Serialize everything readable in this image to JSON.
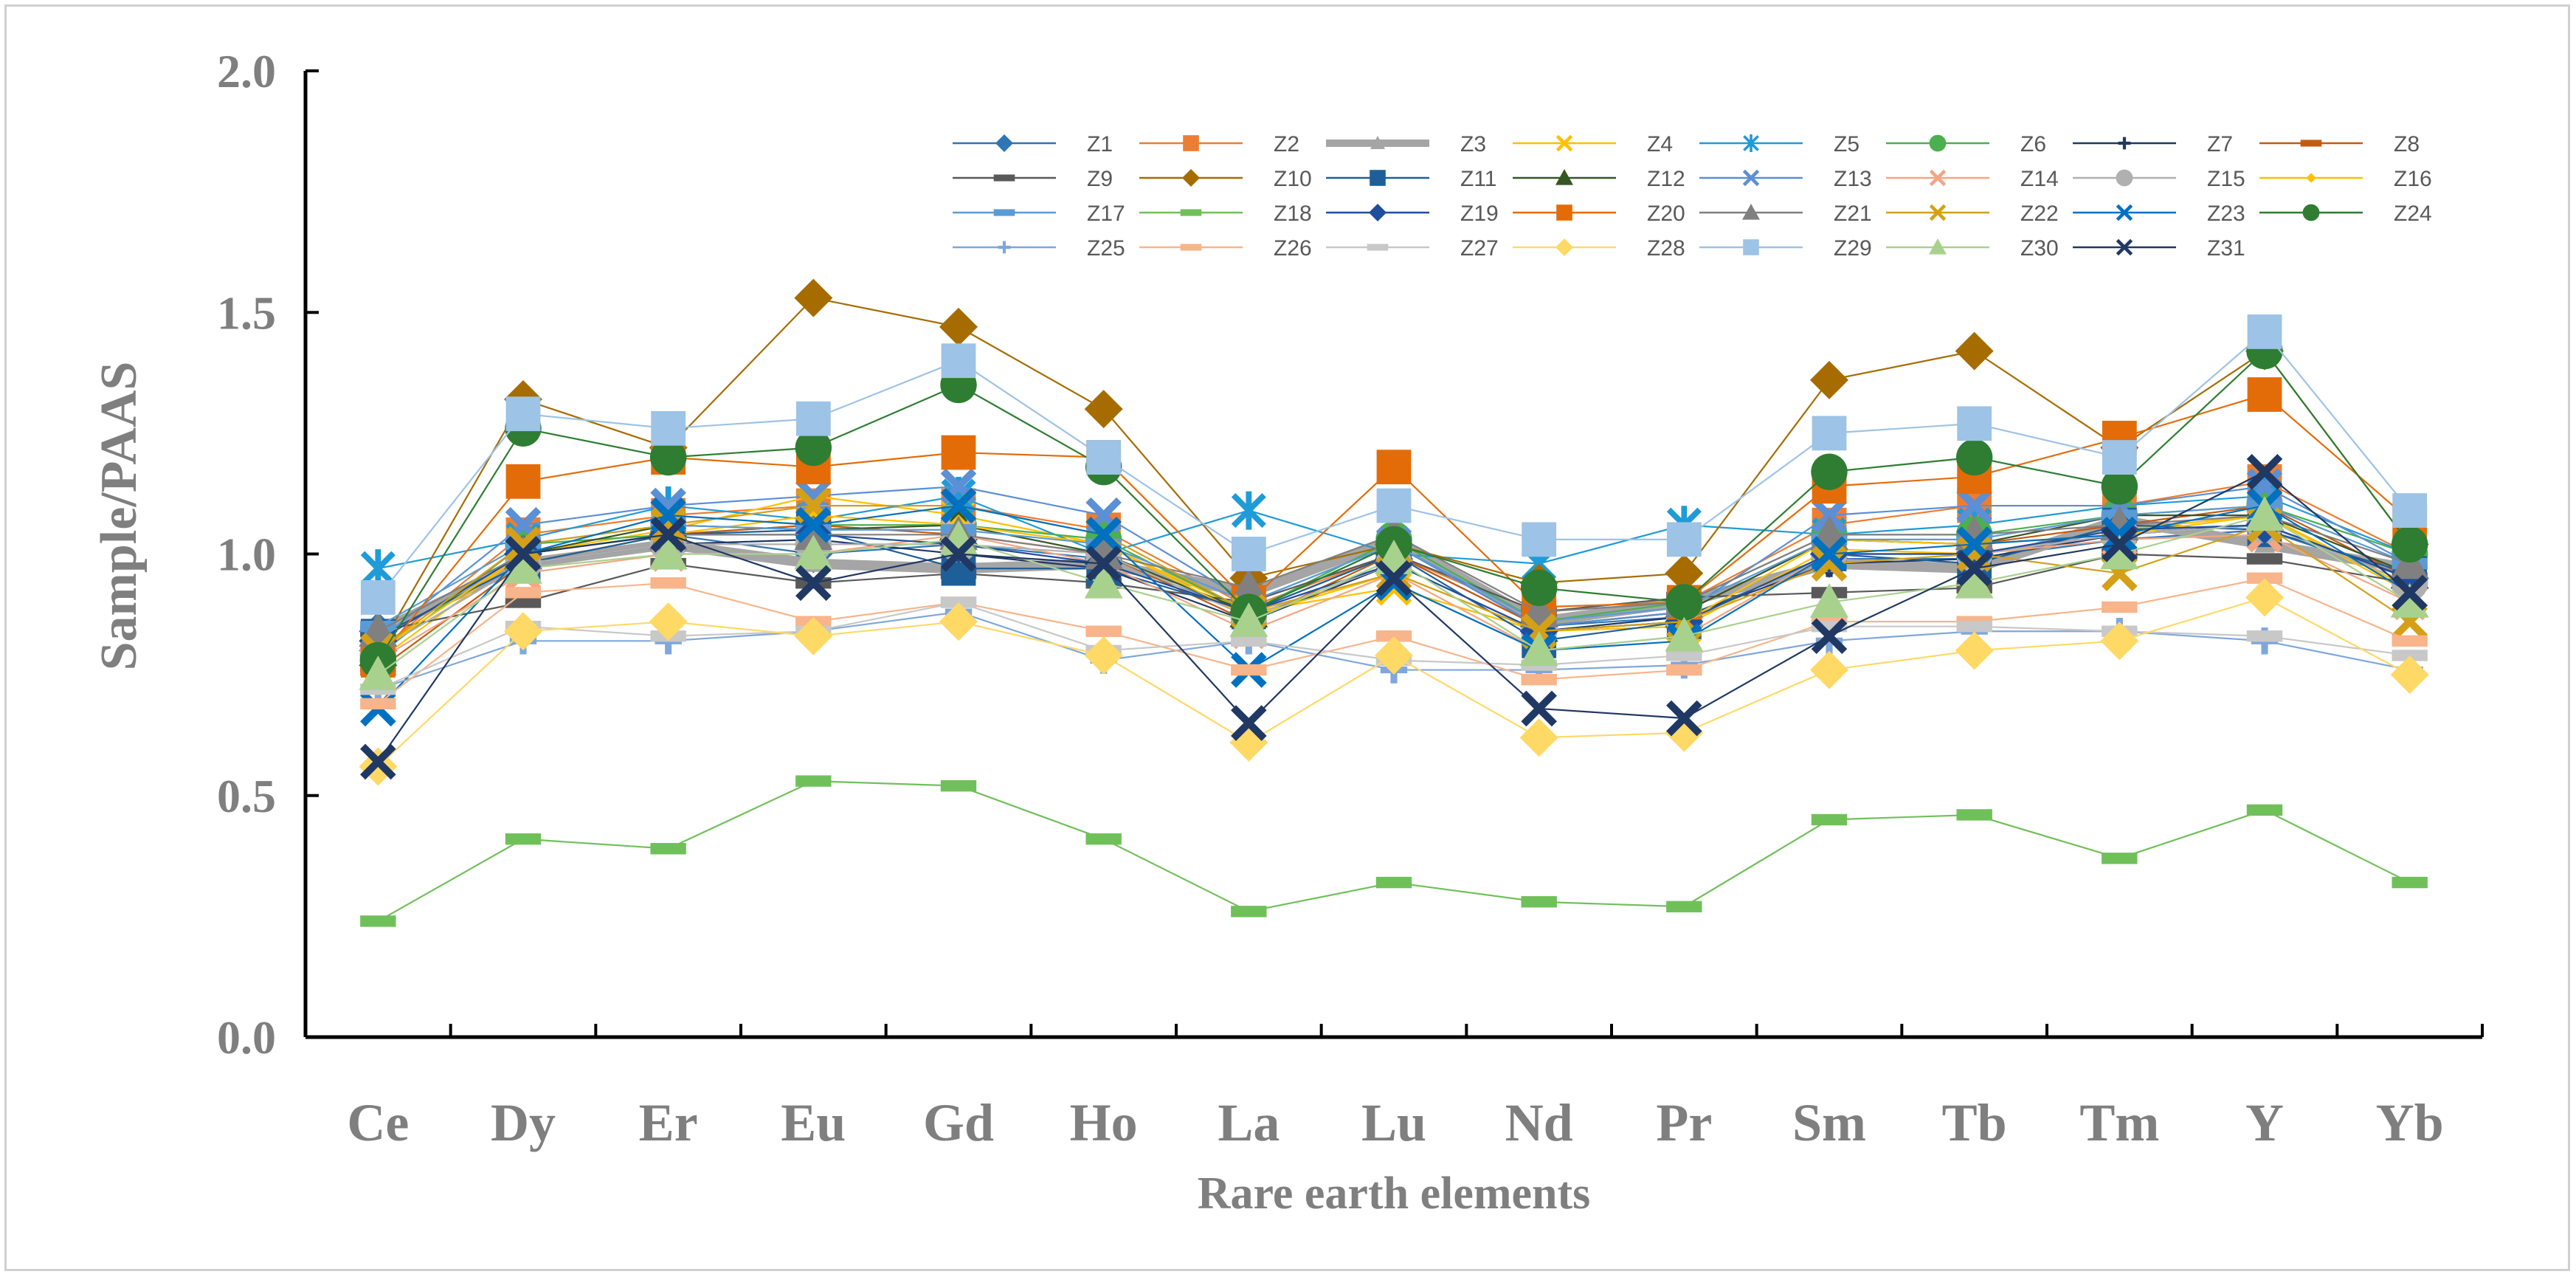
{
  "chart_data": {
    "type": "line",
    "title": "",
    "xlabel": "Rare earth elements",
    "ylabel": "Sample/PAAS",
    "ylim": [
      0,
      2
    ],
    "yticks": [
      "0.0",
      "0.5",
      "1.0",
      "1.5",
      "2.0"
    ],
    "categories": [
      "Ce",
      "Dy",
      "Er",
      "Eu",
      "Gd",
      "Ho",
      "La",
      "Lu",
      "Nd",
      "Pr",
      "Sm",
      "Tb",
      "Tm",
      "Y",
      "Yb"
    ],
    "legend_position": "top-right inside",
    "series": [
      {
        "name": "Z1",
        "color": "#2e75b6",
        "marker": "diamond",
        "values": [
          0.84,
          1.0,
          1.04,
          1.0,
          1.02,
          0.99,
          0.88,
          1.0,
          0.85,
          0.87,
          0.99,
          0.99,
          1.03,
          1.05,
          0.95
        ]
      },
      {
        "name": "Z2",
        "color": "#ed7d31",
        "marker": "square",
        "values": [
          0.8,
          1.04,
          1.08,
          1.1,
          1.1,
          1.05,
          0.89,
          1.0,
          0.87,
          0.9,
          1.06,
          1.1,
          1.1,
          1.15,
          1.0
        ]
      },
      {
        "name": "Z3",
        "color": "#a5a5a5",
        "marker": "triangle",
        "bold": true,
        "values": [
          0.84,
          0.98,
          1.02,
          0.98,
          0.97,
          0.98,
          0.92,
          1.03,
          0.86,
          0.9,
          0.98,
          0.97,
          1.07,
          1.02,
          0.97
        ]
      },
      {
        "name": "Z4",
        "color": "#ffc000",
        "marker": "x",
        "values": [
          0.78,
          1.0,
          1.05,
          1.12,
          1.08,
          1.02,
          0.88,
          0.93,
          0.84,
          0.85,
          1.01,
          1.0,
          1.05,
          1.08,
          0.92
        ]
      },
      {
        "name": "Z5",
        "color": "#1f9bd7",
        "marker": "star",
        "values": [
          0.97,
          1.03,
          1.1,
          1.07,
          1.12,
          1.0,
          1.09,
          1.0,
          0.98,
          1.06,
          1.04,
          1.06,
          1.1,
          1.12,
          1.0
        ]
      },
      {
        "name": "Z6",
        "color": "#4caf50",
        "marker": "circle",
        "values": [
          0.79,
          1.02,
          1.04,
          1.06,
          1.06,
          1.03,
          0.88,
          1.03,
          0.86,
          0.9,
          1.04,
          1.04,
          1.08,
          1.1,
          1.0
        ]
      },
      {
        "name": "Z7",
        "color": "#1f3864",
        "marker": "plus",
        "values": [
          0.8,
          0.98,
          1.02,
          1.03,
          1.0,
          0.97,
          0.86,
          0.98,
          0.84,
          0.87,
          0.98,
          0.99,
          1.04,
          1.06,
          0.95
        ]
      },
      {
        "name": "Z8",
        "color": "#c55a11",
        "marker": "dash",
        "values": [
          0.76,
          0.98,
          1.04,
          1.06,
          1.04,
          1.0,
          0.86,
          1.0,
          0.85,
          0.88,
          1.03,
          1.02,
          1.06,
          1.1,
          0.95
        ]
      },
      {
        "name": "Z9",
        "color": "#595959",
        "marker": "dash",
        "values": [
          0.84,
          0.9,
          0.98,
          0.94,
          0.96,
          0.94,
          0.9,
          1.0,
          0.88,
          0.91,
          0.92,
          0.93,
          1.0,
          0.99,
          0.94
        ]
      },
      {
        "name": "Z10",
        "color": "#a66c00",
        "marker": "diamond",
        "values": [
          0.8,
          1.32,
          1.22,
          1.53,
          1.47,
          1.3,
          0.95,
          1.02,
          0.94,
          0.96,
          1.36,
          1.42,
          1.22,
          1.42,
          1.02
        ]
      },
      {
        "name": "Z11",
        "color": "#1f5f99",
        "marker": "square",
        "values": [
          0.83,
          0.98,
          1.04,
          1.05,
          0.97,
          0.97,
          0.88,
          1.0,
          0.82,
          0.86,
          1.0,
          0.98,
          1.06,
          1.05,
          0.96
        ]
      },
      {
        "name": "Z12",
        "color": "#375623",
        "marker": "triangle",
        "values": [
          0.8,
          1.0,
          1.06,
          1.05,
          1.06,
          1.0,
          0.88,
          1.02,
          0.85,
          0.88,
          1.03,
          1.02,
          1.08,
          1.08,
          0.96
        ]
      },
      {
        "name": "Z13",
        "color": "#5b8fd6",
        "marker": "x",
        "values": [
          0.82,
          1.06,
          1.1,
          1.12,
          1.14,
          1.08,
          0.9,
          1.02,
          0.85,
          0.88,
          1.08,
          1.1,
          1.1,
          1.14,
          0.98
        ]
      },
      {
        "name": "Z14",
        "color": "#f4a582",
        "marker": "x",
        "values": [
          0.78,
          0.96,
          1.0,
          1.0,
          1.04,
          0.98,
          0.84,
          0.96,
          0.8,
          0.83,
          1.0,
          1.0,
          1.03,
          1.04,
          0.9
        ]
      },
      {
        "name": "Z15",
        "color": "#b0b0b0",
        "marker": "circle",
        "values": [
          0.8,
          0.98,
          1.02,
          1.02,
          1.02,
          1.0,
          0.87,
          0.98,
          0.84,
          0.86,
          1.0,
          1.0,
          1.04,
          1.06,
          0.94
        ]
      },
      {
        "name": "Z16",
        "color": "#ffc000",
        "marker": "diamond-small",
        "values": [
          0.8,
          1.0,
          1.04,
          1.08,
          1.06,
          1.02,
          0.87,
          0.96,
          0.84,
          0.86,
          1.03,
          1.02,
          1.04,
          1.08,
          0.93
        ]
      },
      {
        "name": "Z17",
        "color": "#5b9bd5",
        "marker": "dash",
        "values": [
          0.85,
          1.02,
          1.06,
          1.05,
          1.05,
          1.02,
          0.9,
          1.02,
          0.86,
          0.89,
          1.03,
          1.03,
          1.08,
          1.1,
          0.98
        ]
      },
      {
        "name": "Z18",
        "color": "#70c05a",
        "marker": "dash",
        "values": [
          0.24,
          0.41,
          0.39,
          0.53,
          0.52,
          0.41,
          0.26,
          0.32,
          0.28,
          0.27,
          0.45,
          0.46,
          0.37,
          0.47,
          0.32
        ]
      },
      {
        "name": "Z19",
        "color": "#1f4e9c",
        "marker": "diamond",
        "values": [
          0.82,
          1.0,
          1.04,
          1.04,
          1.02,
          0.98,
          0.88,
          0.98,
          0.84,
          0.86,
          1.0,
          1.0,
          1.05,
          1.06,
          0.95
        ]
      },
      {
        "name": "Z20",
        "color": "#e36c09",
        "marker": "square",
        "values": [
          0.78,
          1.15,
          1.2,
          1.18,
          1.21,
          1.2,
          0.9,
          1.18,
          0.89,
          0.9,
          1.14,
          1.16,
          1.24,
          1.33,
          1.07
        ]
      },
      {
        "name": "Z21",
        "color": "#808080",
        "marker": "triangle",
        "values": [
          0.84,
          1.0,
          1.04,
          1.04,
          1.04,
          1.0,
          0.93,
          1.04,
          0.88,
          0.9,
          1.04,
          1.04,
          1.06,
          1.08,
          0.98
        ]
      },
      {
        "name": "Z22",
        "color": "#d4a017",
        "marker": "x",
        "values": [
          0.8,
          1.02,
          1.06,
          1.1,
          1.1,
          1.04,
          0.88,
          0.96,
          0.84,
          0.86,
          0.98,
          1.0,
          0.96,
          1.06,
          0.86
        ]
      },
      {
        "name": "Z23",
        "color": "#0070c0",
        "marker": "x",
        "values": [
          0.68,
          1.0,
          1.08,
          1.06,
          1.1,
          1.04,
          0.76,
          0.94,
          0.8,
          0.82,
          1.0,
          1.02,
          1.04,
          1.1,
          0.92
        ]
      },
      {
        "name": "Z24",
        "color": "#2e7d32",
        "marker": "circle",
        "values": [
          0.78,
          1.26,
          1.2,
          1.22,
          1.35,
          1.18,
          0.88,
          1.02,
          0.93,
          0.9,
          1.17,
          1.2,
          1.14,
          1.42,
          1.02
        ]
      },
      {
        "name": "Z25",
        "color": "#7fa7dc",
        "marker": "plus",
        "values": [
          0.72,
          0.82,
          0.82,
          0.84,
          0.88,
          0.78,
          0.82,
          0.76,
          0.76,
          0.77,
          0.82,
          0.84,
          0.84,
          0.82,
          0.76
        ]
      },
      {
        "name": "Z26",
        "color": "#f8b48a",
        "marker": "dash",
        "values": [
          0.69,
          0.92,
          0.94,
          0.86,
          0.9,
          0.84,
          0.76,
          0.83,
          0.74,
          0.76,
          0.86,
          0.86,
          0.89,
          0.95,
          0.82
        ]
      },
      {
        "name": "Z27",
        "color": "#c8c8c8",
        "marker": "dash",
        "values": [
          0.72,
          0.85,
          0.83,
          0.84,
          0.9,
          0.8,
          0.82,
          0.78,
          0.77,
          0.79,
          0.85,
          0.85,
          0.84,
          0.83,
          0.79
        ]
      },
      {
        "name": "Z28",
        "color": "#ffd966",
        "marker": "diamond",
        "values": [
          0.56,
          0.84,
          0.86,
          0.83,
          0.86,
          0.79,
          0.61,
          0.79,
          0.62,
          0.63,
          0.76,
          0.8,
          0.82,
          0.91,
          0.75
        ]
      },
      {
        "name": "Z29",
        "color": "#9dc3e6",
        "marker": "square",
        "values": [
          0.91,
          1.29,
          1.26,
          1.28,
          1.4,
          1.2,
          1.0,
          1.1,
          1.03,
          1.03,
          1.25,
          1.27,
          1.2,
          1.46,
          1.09
        ]
      },
      {
        "name": "Z30",
        "color": "#a9d18e",
        "marker": "triangle",
        "values": [
          0.75,
          0.97,
          1.0,
          1.0,
          1.03,
          0.94,
          0.86,
          0.99,
          0.8,
          0.83,
          0.9,
          0.94,
          1.0,
          1.08,
          0.9
        ]
      },
      {
        "name": "Z31",
        "color": "#203864",
        "marker": "x",
        "values": [
          0.57,
          1.0,
          1.04,
          0.94,
          1.0,
          0.98,
          0.65,
          0.95,
          0.68,
          0.66,
          0.83,
          0.97,
          1.02,
          1.17,
          0.92
        ]
      }
    ]
  }
}
